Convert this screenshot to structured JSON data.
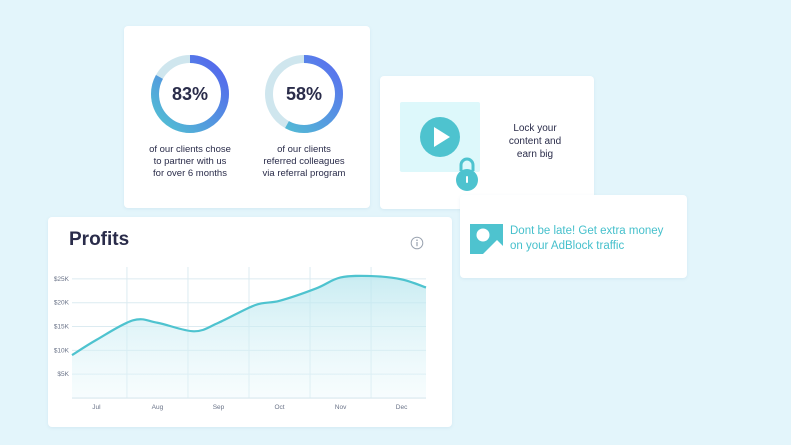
{
  "stats": [
    {
      "value": "83%",
      "fraction": 0.83,
      "caption": [
        "of our clients chose",
        "to partner with us",
        "for over 6 months"
      ]
    },
    {
      "value": "58%",
      "fraction": 0.58,
      "caption": [
        "of our clients",
        "referred colleagues",
        "via referral program"
      ]
    }
  ],
  "lock_card": {
    "lines": [
      "Lock your",
      "content and",
      "earn big"
    ],
    "icons": [
      "play-icon",
      "lock-icon"
    ]
  },
  "ad_card": {
    "lines": [
      "Dont be late! Get extra money",
      "on your AdBlock traffic"
    ],
    "icon": "image-placeholder-icon"
  },
  "profits": {
    "title": "Profits",
    "info_icon": "info-icon"
  },
  "colors": {
    "accent": "#4ec3cf",
    "ring_gradient_start": "#5a6cf0",
    "ring_track": "#cfe6ee",
    "text_dark": "#2a2c4a"
  },
  "chart_data": {
    "type": "area",
    "title": "Profits",
    "categories": [
      "Jul",
      "Aug",
      "Sep",
      "Oct",
      "Nov",
      "Dec"
    ],
    "y_ticks": [
      "$5K",
      "$10K",
      "$15K",
      "$20K",
      "$25K"
    ],
    "y_tick_values": [
      5000,
      10000,
      15000,
      20000,
      25000
    ],
    "ylim": [
      0,
      27500
    ],
    "x_domain": [
      -0.4,
      5.4
    ],
    "series": [
      {
        "x": [
          -0.4,
          0.0,
          0.6,
          1.0,
          1.6,
          2.0,
          2.6,
          3.0,
          3.6,
          4.0,
          4.5,
          5.0,
          5.4
        ],
        "values": [
          9000,
          12200,
          16300,
          15800,
          14000,
          15800,
          19500,
          20400,
          23000,
          25300,
          25600,
          24900,
          23200
        ]
      }
    ],
    "grid": true,
    "legend": "none"
  }
}
